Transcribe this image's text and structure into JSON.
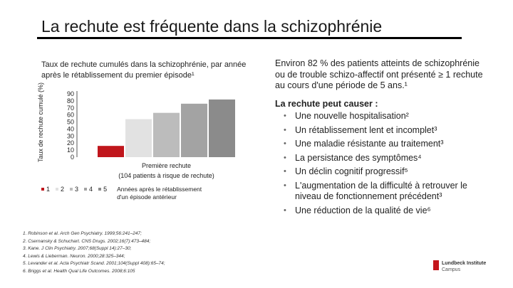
{
  "slide": {
    "title": "La rechute est fréquente dans la schizophrénie"
  },
  "chart_data": {
    "type": "bar",
    "title": "Taux de rechute cumulés dans la schizophrénie, par année après le rétablissement du premier épisode¹",
    "ylabel": "Taux de rechute cumulé (%)",
    "xlabel": "Première rechute",
    "xlabel_sub": "(104 patients à risque de rechute)",
    "categories": [
      "1",
      "2",
      "3",
      "4",
      "5"
    ],
    "values": [
      16,
      54,
      63,
      76,
      82
    ],
    "yticks": [
      "90",
      "80",
      "70",
      "60",
      "50",
      "40",
      "30",
      "20",
      "10",
      "0"
    ],
    "ylim": [
      0,
      90
    ],
    "colors": [
      "#c0161c",
      "#e2e2e2",
      "#bcbcbc",
      "#a3a3a3",
      "#8b8b8b"
    ],
    "legend_note": "Années après le rétablissement d'un épisode antérieur",
    "legend_placement": "bottom"
  },
  "right_panel": {
    "intro": "Environ 82 % des patients atteints de schizophrénie ou de trouble schizo-affectif ont présenté ≥ 1 rechute au cours d'une période de 5 ans.¹",
    "heading": "La rechute peut causer :",
    "bullets": [
      "Une nouvelle hospitalisation²",
      "Un rétablissement lent et incomplet³",
      "Une maladie résistante au traitement³",
      "La persistance des symptômes⁴",
      "Un déclin cognitif progressif⁵",
      "L'augmentation de la difficulté à retrouver le niveau de fonctionnement précédent³",
      "Une réduction de la qualité de vie⁶"
    ]
  },
  "references": [
    "1. Robinson et al. Arch Gen Psychiatry. 1999;56:241–247;",
    "2. Csernansky & Schuchart. CNS Drugs. 2002;16(7):473–484;",
    "3. Kane. J Clin Psychiatry. 2007;68(Suppl 14):27–30;",
    "4. Lewis & Lieberman. Neuron. 2000;28:325–344;",
    "5. Levander et al. Acta Psychiatr Scand. 2001;104(Suppl 408):65–74;",
    "6. Briggs et al. Health Qual Life Outcomes. 2008;6:105"
  ],
  "logo": {
    "line1": "Lundbeck Institute",
    "line2": "Campus",
    "color": "#c4161c"
  }
}
